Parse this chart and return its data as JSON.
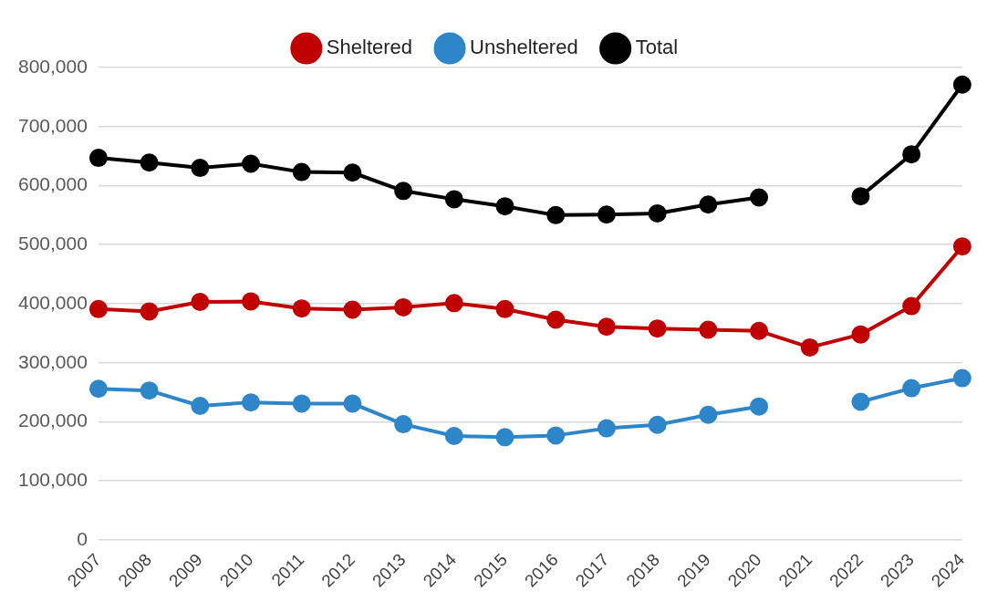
{
  "chart_data": {
    "type": "line",
    "categories": [
      "2007",
      "2008",
      "2009",
      "2010",
      "2011",
      "2012",
      "2013",
      "2014",
      "2015",
      "2016",
      "2017",
      "2018",
      "2019",
      "2020",
      "2021",
      "2022",
      "2023",
      "2024"
    ],
    "series": [
      {
        "name": "Sheltered",
        "color": "#c00000",
        "values": [
          391000,
          387000,
          403000,
          404000,
          392000,
          390000,
          394000,
          401000,
          391000,
          373000,
          361000,
          358000,
          356000,
          354000,
          326000,
          348000,
          396000,
          497000
        ]
      },
      {
        "name": "Unsheltered",
        "color": "#2e86c8",
        "values": [
          256000,
          253000,
          227000,
          233000,
          231000,
          231000,
          196000,
          176000,
          174000,
          177000,
          189000,
          195000,
          212000,
          226000,
          null,
          234000,
          257000,
          274000
        ]
      },
      {
        "name": "Total",
        "color": "#000000",
        "values": [
          647000,
          639000,
          630000,
          637000,
          623000,
          622000,
          591000,
          577000,
          565000,
          550000,
          551000,
          553000,
          568000,
          580000,
          null,
          582000,
          653000,
          771000
        ]
      }
    ],
    "ylim": [
      0,
      800000
    ],
    "yticks": [
      {
        "value": 0,
        "label": "0"
      },
      {
        "value": 100000,
        "label": "100,000"
      },
      {
        "value": 200000,
        "label": "200,000"
      },
      {
        "value": 300000,
        "label": "300,000"
      },
      {
        "value": 400000,
        "label": "400,000"
      },
      {
        "value": 500000,
        "label": "500,000"
      },
      {
        "value": 600000,
        "label": "600,000"
      },
      {
        "value": 700000,
        "label": "700,000"
      },
      {
        "value": 800000,
        "label": "800,000"
      }
    ],
    "grid": "y",
    "legend": "top",
    "marker": "circle",
    "line_style": "solid"
  }
}
